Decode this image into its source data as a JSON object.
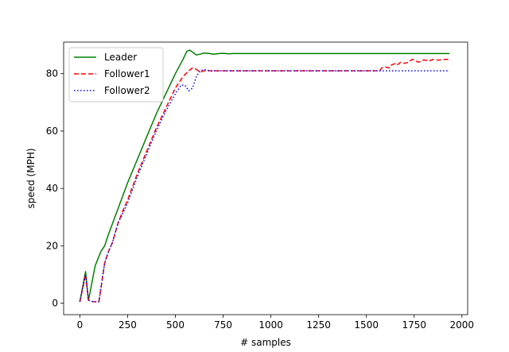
{
  "chart_data": {
    "type": "line",
    "title": "",
    "xlabel": "# samples",
    "ylabel": "speed (MPH)",
    "xlim": [
      -85,
      2030
    ],
    "ylim": [
      -4,
      91
    ],
    "xticks": [
      0,
      250,
      500,
      750,
      1000,
      1250,
      1500,
      1750,
      2000
    ],
    "yticks": [
      0,
      20,
      40,
      60,
      80
    ],
    "grid": false,
    "legend_position": "top-left",
    "series": [
      {
        "name": "Leader",
        "color": "#008000",
        "dash": "solid",
        "points": [
          [
            0,
            0.5
          ],
          [
            30,
            11
          ],
          [
            45,
            1
          ],
          [
            60,
            6
          ],
          [
            80,
            13
          ],
          [
            110,
            18
          ],
          [
            130,
            20
          ],
          [
            150,
            24
          ],
          [
            200,
            33
          ],
          [
            250,
            42
          ],
          [
            300,
            50
          ],
          [
            350,
            58
          ],
          [
            400,
            66
          ],
          [
            450,
            73
          ],
          [
            500,
            80
          ],
          [
            540,
            85
          ],
          [
            560,
            87.8
          ],
          [
            575,
            88.2
          ],
          [
            590,
            87.5
          ],
          [
            610,
            86.5
          ],
          [
            630,
            86.8
          ],
          [
            650,
            87.2
          ],
          [
            680,
            87
          ],
          [
            700,
            86.8
          ],
          [
            730,
            87
          ],
          [
            750,
            87.1
          ],
          [
            780,
            86.9
          ],
          [
            800,
            87
          ],
          [
            1000,
            87
          ],
          [
            1500,
            87
          ],
          [
            1935,
            87
          ]
        ]
      },
      {
        "name": "Follower1",
        "color": "#ff0000",
        "dash": "dashed",
        "points": [
          [
            0,
            0.5
          ],
          [
            30,
            10
          ],
          [
            45,
            1
          ],
          [
            70,
            0.5
          ],
          [
            90,
            0.5
          ],
          [
            100,
            0.5
          ],
          [
            110,
            5
          ],
          [
            130,
            14
          ],
          [
            150,
            18
          ],
          [
            170,
            21
          ],
          [
            200,
            28
          ],
          [
            230,
            33
          ],
          [
            250,
            36
          ],
          [
            300,
            45
          ],
          [
            350,
            53
          ],
          [
            400,
            61
          ],
          [
            450,
            68
          ],
          [
            500,
            75
          ],
          [
            540,
            79
          ],
          [
            570,
            81
          ],
          [
            590,
            82
          ],
          [
            610,
            81.5
          ],
          [
            630,
            80.5
          ],
          [
            650,
            81
          ],
          [
            700,
            81
          ],
          [
            800,
            81
          ],
          [
            1000,
            81
          ],
          [
            1200,
            81
          ],
          [
            1400,
            81
          ],
          [
            1570,
            81
          ],
          [
            1580,
            82
          ],
          [
            1600,
            82.3
          ],
          [
            1620,
            82
          ],
          [
            1630,
            83
          ],
          [
            1650,
            83.5
          ],
          [
            1660,
            83
          ],
          [
            1680,
            84
          ],
          [
            1700,
            83.6
          ],
          [
            1720,
            84
          ],
          [
            1740,
            85
          ],
          [
            1760,
            84.5
          ],
          [
            1770,
            84
          ],
          [
            1780,
            84.2
          ],
          [
            1800,
            84.8
          ],
          [
            1830,
            84.5
          ],
          [
            1850,
            85
          ],
          [
            1880,
            84.7
          ],
          [
            1900,
            85
          ],
          [
            1935,
            85
          ]
        ]
      },
      {
        "name": "Follower2",
        "color": "#0000ff",
        "dash": "dotted",
        "points": [
          [
            0,
            0.5
          ],
          [
            30,
            10
          ],
          [
            45,
            1
          ],
          [
            70,
            0.5
          ],
          [
            90,
            0.5
          ],
          [
            100,
            0.5
          ],
          [
            110,
            5
          ],
          [
            130,
            14
          ],
          [
            150,
            18
          ],
          [
            170,
            21
          ],
          [
            200,
            28
          ],
          [
            230,
            32
          ],
          [
            250,
            35
          ],
          [
            300,
            44
          ],
          [
            350,
            52
          ],
          [
            400,
            60
          ],
          [
            450,
            67
          ],
          [
            500,
            73
          ],
          [
            530,
            76
          ],
          [
            550,
            76
          ],
          [
            570,
            74
          ],
          [
            590,
            75
          ],
          [
            610,
            79
          ],
          [
            630,
            81
          ],
          [
            650,
            81.5
          ],
          [
            680,
            81
          ],
          [
            700,
            81
          ],
          [
            800,
            81
          ],
          [
            1000,
            81
          ],
          [
            1200,
            81
          ],
          [
            1400,
            81
          ],
          [
            1570,
            81
          ],
          [
            1800,
            81
          ],
          [
            1935,
            81
          ]
        ]
      }
    ]
  }
}
